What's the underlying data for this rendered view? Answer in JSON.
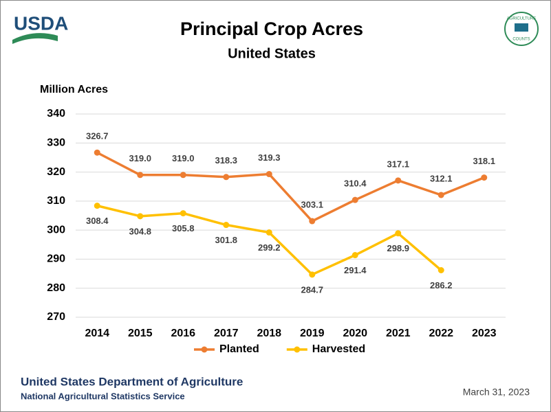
{
  "header": {
    "logo_text": "USDA",
    "badge_top": "AGRICULTURE",
    "badge_bottom": "COUNTS"
  },
  "chart_data": {
    "type": "line",
    "title": "Principal Crop Acres",
    "subtitle": "United States",
    "y_label": "Million Acres",
    "categories": [
      "2014",
      "2015",
      "2016",
      "2017",
      "2018",
      "2019",
      "2020",
      "2021",
      "2022",
      "2023"
    ],
    "series": [
      {
        "name": "Planted",
        "color": "#ed7d31",
        "label_position": "above",
        "values": [
          326.7,
          319.0,
          319.0,
          318.3,
          319.3,
          303.1,
          310.4,
          317.1,
          312.1,
          318.1
        ],
        "value_labels": [
          "326.7",
          "319.0",
          "319.0",
          "318.3",
          "319.3",
          "303.1",
          "310.4",
          "317.1",
          "312.1",
          "318.1"
        ]
      },
      {
        "name": "Harvested",
        "color": "#ffc000",
        "label_position": "below",
        "values": [
          308.4,
          304.8,
          305.8,
          301.8,
          299.2,
          284.7,
          291.4,
          298.9,
          286.2,
          null
        ],
        "value_labels": [
          "308.4",
          "304.8",
          "305.8",
          "301.8",
          "299.2",
          "284.7",
          "291.4",
          "298.9",
          "286.2",
          null
        ]
      }
    ],
    "ylim": [
      270,
      340
    ],
    "yticks": [
      270,
      280,
      290,
      300,
      310,
      320,
      330,
      340
    ],
    "grid": true,
    "legend": "bottom"
  },
  "footer": {
    "department": "United States Department of Agriculture",
    "service": "National Agricultural Statistics Service",
    "date": "March 31, 2023"
  }
}
